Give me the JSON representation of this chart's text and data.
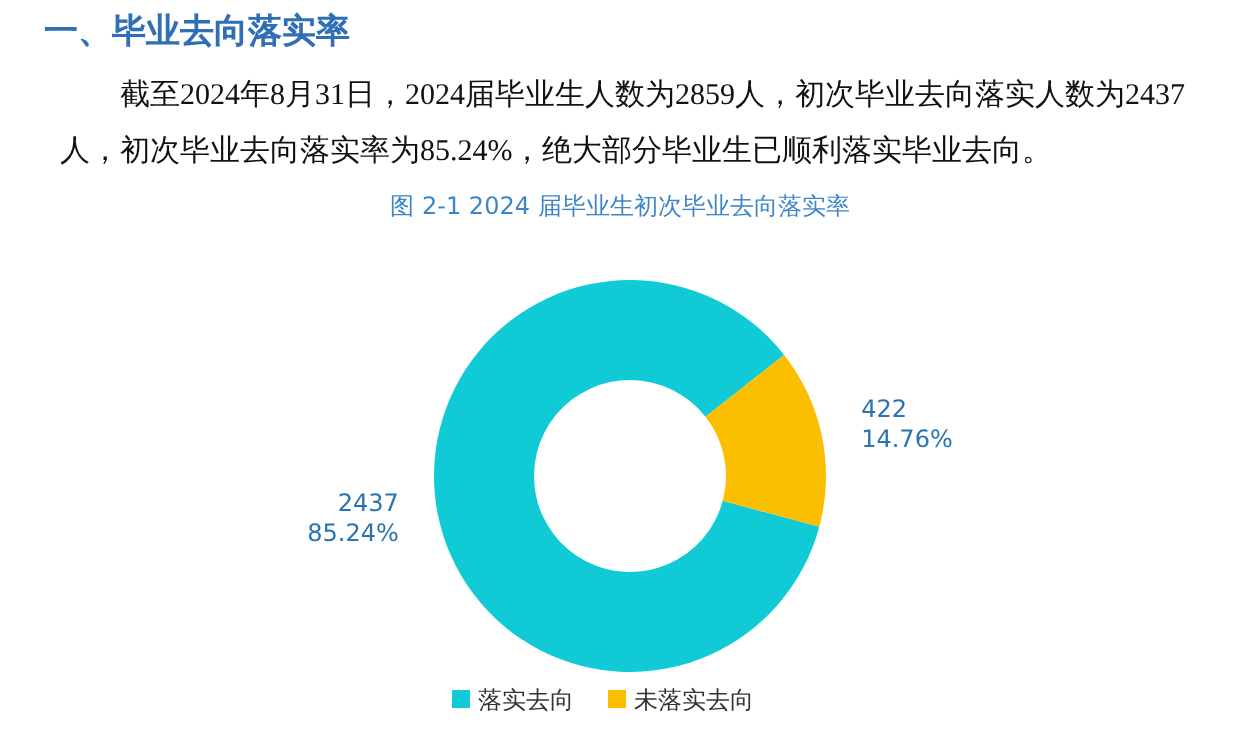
{
  "chart_data": {
    "type": "donut",
    "title": "一、毕业去向落实率",
    "subtitle": "图 2-1  2024 届毕业生初次毕业去向落实率",
    "annotations": [
      "截至2024年8月31日，2024届毕业生人数为2859人，初次毕业去向落实人数为2437人，初次毕业去向落实率为85.24%，绝大部分毕业生已顺利落实毕业去向。"
    ],
    "categories": [
      "落实去向",
      "未落实去向"
    ],
    "values": [
      2437,
      422
    ],
    "value_labels": [
      "2437\n85.24%",
      "422\n14.76%"
    ],
    "colors": [
      "#10cad6",
      "#fbbf00"
    ],
    "legend": "bottom"
  }
}
